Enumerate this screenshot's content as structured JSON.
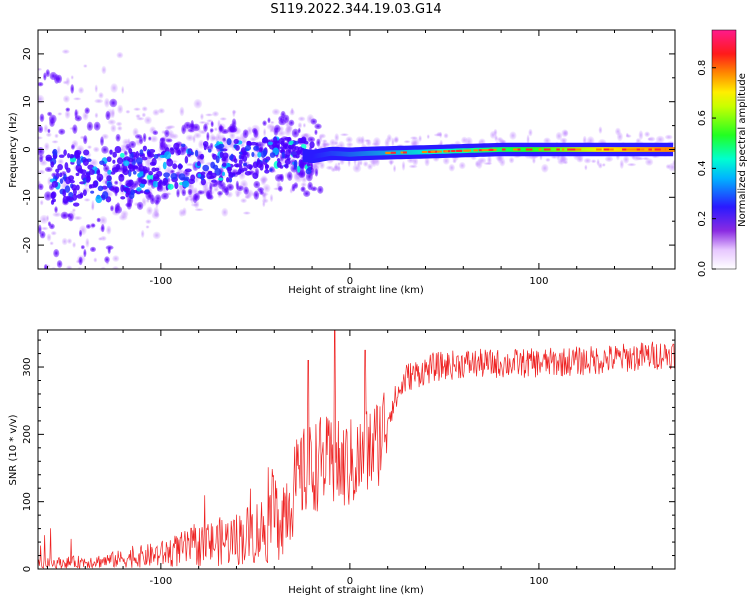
{
  "figure": {
    "title": "S119.2022.344.19.03.G14"
  },
  "chart_data": [
    {
      "type": "heatmap",
      "title": "S119.2022.344.19.03.G14",
      "xlabel": "Height of straight line (km)",
      "ylabel": "Frequency (Hz)",
      "xlim": [
        -165,
        172
      ],
      "ylim": [
        -25,
        25
      ],
      "xticks": [
        -100,
        0,
        100
      ],
      "yticks": [
        -20,
        -10,
        0,
        10,
        20
      ],
      "grid": false,
      "colormap": "rainbow (white to violet to blue to cyan to green to yellow to red to magenta)",
      "colorbar": {
        "label": "Normalized spectral amplitude",
        "range": [
          0.0,
          0.95
        ],
        "ticks": [
          0.0,
          0.2,
          0.4,
          0.6,
          0.8
        ]
      },
      "ridge": [
        {
          "x": -150,
          "y": -6
        },
        {
          "x": -130,
          "y": -5.5
        },
        {
          "x": -110,
          "y": -4.5
        },
        {
          "x": -90,
          "y": -3
        },
        {
          "x": -70,
          "y": -2.5
        },
        {
          "x": -50,
          "y": -2
        },
        {
          "x": -35,
          "y": -0.5
        },
        {
          "x": -20,
          "y": -1.5
        },
        {
          "x": -10,
          "y": -0.8
        },
        {
          "x": 0,
          "y": -1
        },
        {
          "x": 10,
          "y": -0.8
        },
        {
          "x": 40,
          "y": -0.5
        },
        {
          "x": 80,
          "y": 0
        },
        {
          "x": 120,
          "y": 0
        },
        {
          "x": 172,
          "y": 0
        }
      ]
    },
    {
      "type": "line",
      "xlabel": "Height of straight line (km)",
      "ylabel": "SNR (10 * v/v)",
      "xlim": [
        -165,
        172
      ],
      "ylim": [
        0,
        355
      ],
      "xticks": [
        -100,
        0,
        100
      ],
      "yticks": [
        0,
        100,
        200,
        300
      ],
      "grid": false,
      "color": "#ee2222",
      "trend": [
        {
          "x": -165,
          "y": 8
        },
        {
          "x": -130,
          "y": 12
        },
        {
          "x": -100,
          "y": 22
        },
        {
          "x": -80,
          "y": 35
        },
        {
          "x": -60,
          "y": 45
        },
        {
          "x": -45,
          "y": 60
        },
        {
          "x": -35,
          "y": 90
        },
        {
          "x": -25,
          "y": 140
        },
        {
          "x": -15,
          "y": 160
        },
        {
          "x": -5,
          "y": 150
        },
        {
          "x": 5,
          "y": 160
        },
        {
          "x": 15,
          "y": 190
        },
        {
          "x": 22,
          "y": 240
        },
        {
          "x": 30,
          "y": 285
        },
        {
          "x": 45,
          "y": 300
        },
        {
          "x": 60,
          "y": 305
        },
        {
          "x": 80,
          "y": 305
        },
        {
          "x": 100,
          "y": 306
        },
        {
          "x": 130,
          "y": 310
        },
        {
          "x": 172,
          "y": 320
        }
      ],
      "peaks": [
        {
          "x": -8,
          "y": 355
        },
        {
          "x": -22,
          "y": 310
        },
        {
          "x": 8,
          "y": 325
        }
      ]
    }
  ]
}
